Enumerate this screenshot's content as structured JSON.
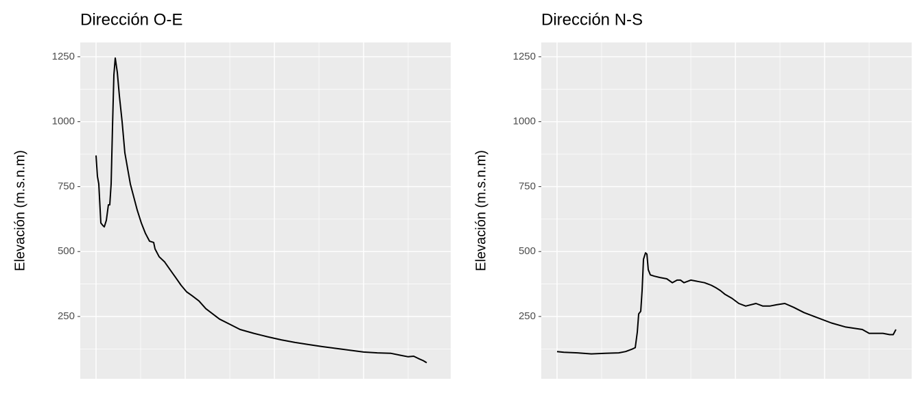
{
  "chart_data": [
    {
      "type": "line",
      "title": "Dirección O-E",
      "y_label": "Elevación (m.s.n.m)",
      "color": "#000000",
      "x": [
        0,
        2,
        4,
        7,
        10,
        12,
        15,
        18,
        20,
        22,
        24,
        26,
        28,
        31,
        34,
        38,
        42,
        46,
        50,
        55,
        60,
        66,
        72,
        78,
        84,
        86,
        92,
        100,
        108,
        116,
        124,
        132,
        140,
        150,
        160,
        170,
        180,
        195,
        210,
        230,
        250,
        270,
        290,
        310,
        330,
        350,
        370,
        390,
        410,
        430,
        445,
        455,
        463,
        470,
        477,
        482
      ],
      "values": [
        870,
        790,
        760,
        610,
        600,
        595,
        620,
        680,
        680,
        760,
        980,
        1180,
        1245,
        1190,
        1100,
        1000,
        880,
        820,
        760,
        710,
        660,
        610,
        570,
        540,
        535,
        510,
        480,
        460,
        430,
        400,
        370,
        345,
        330,
        310,
        280,
        260,
        240,
        220,
        200,
        185,
        172,
        160,
        150,
        142,
        134,
        127,
        120,
        113,
        110,
        108,
        100,
        95,
        97,
        88,
        80,
        72
      ],
      "xlim": [
        -23,
        517
      ],
      "ylim": [
        10,
        1305
      ],
      "yticks": [
        250,
        500,
        750,
        1000,
        1250
      ],
      "grid": true
    },
    {
      "type": "line",
      "title": "Dirección N-S",
      "y_label": "Elevación (m.s.n.m)",
      "color": "#000000",
      "x": [
        0,
        10,
        30,
        50,
        70,
        90,
        100,
        110,
        114,
        117,
        119,
        122,
        124,
        126,
        129,
        131,
        133,
        136,
        142,
        150,
        160,
        168,
        175,
        180,
        185,
        195,
        205,
        215,
        225,
        232,
        238,
        245,
        255,
        265,
        275,
        290,
        300,
        310,
        320,
        332,
        345,
        360,
        380,
        400,
        420,
        445,
        455,
        465,
        475,
        485,
        490,
        494
      ],
      "values": [
        115,
        112,
        110,
        106,
        108,
        110,
        115,
        125,
        130,
        190,
        260,
        270,
        350,
        470,
        495,
        490,
        430,
        410,
        405,
        400,
        395,
        380,
        390,
        390,
        380,
        390,
        385,
        380,
        370,
        360,
        350,
        335,
        320,
        300,
        290,
        300,
        290,
        290,
        295,
        300,
        285,
        265,
        245,
        225,
        210,
        200,
        185,
        185,
        185,
        180,
        180,
        200
      ],
      "xlim": [
        -23,
        517
      ],
      "ylim": [
        10,
        1305
      ],
      "yticks": [
        250,
        500,
        750,
        1000,
        1250
      ],
      "grid": true
    }
  ]
}
